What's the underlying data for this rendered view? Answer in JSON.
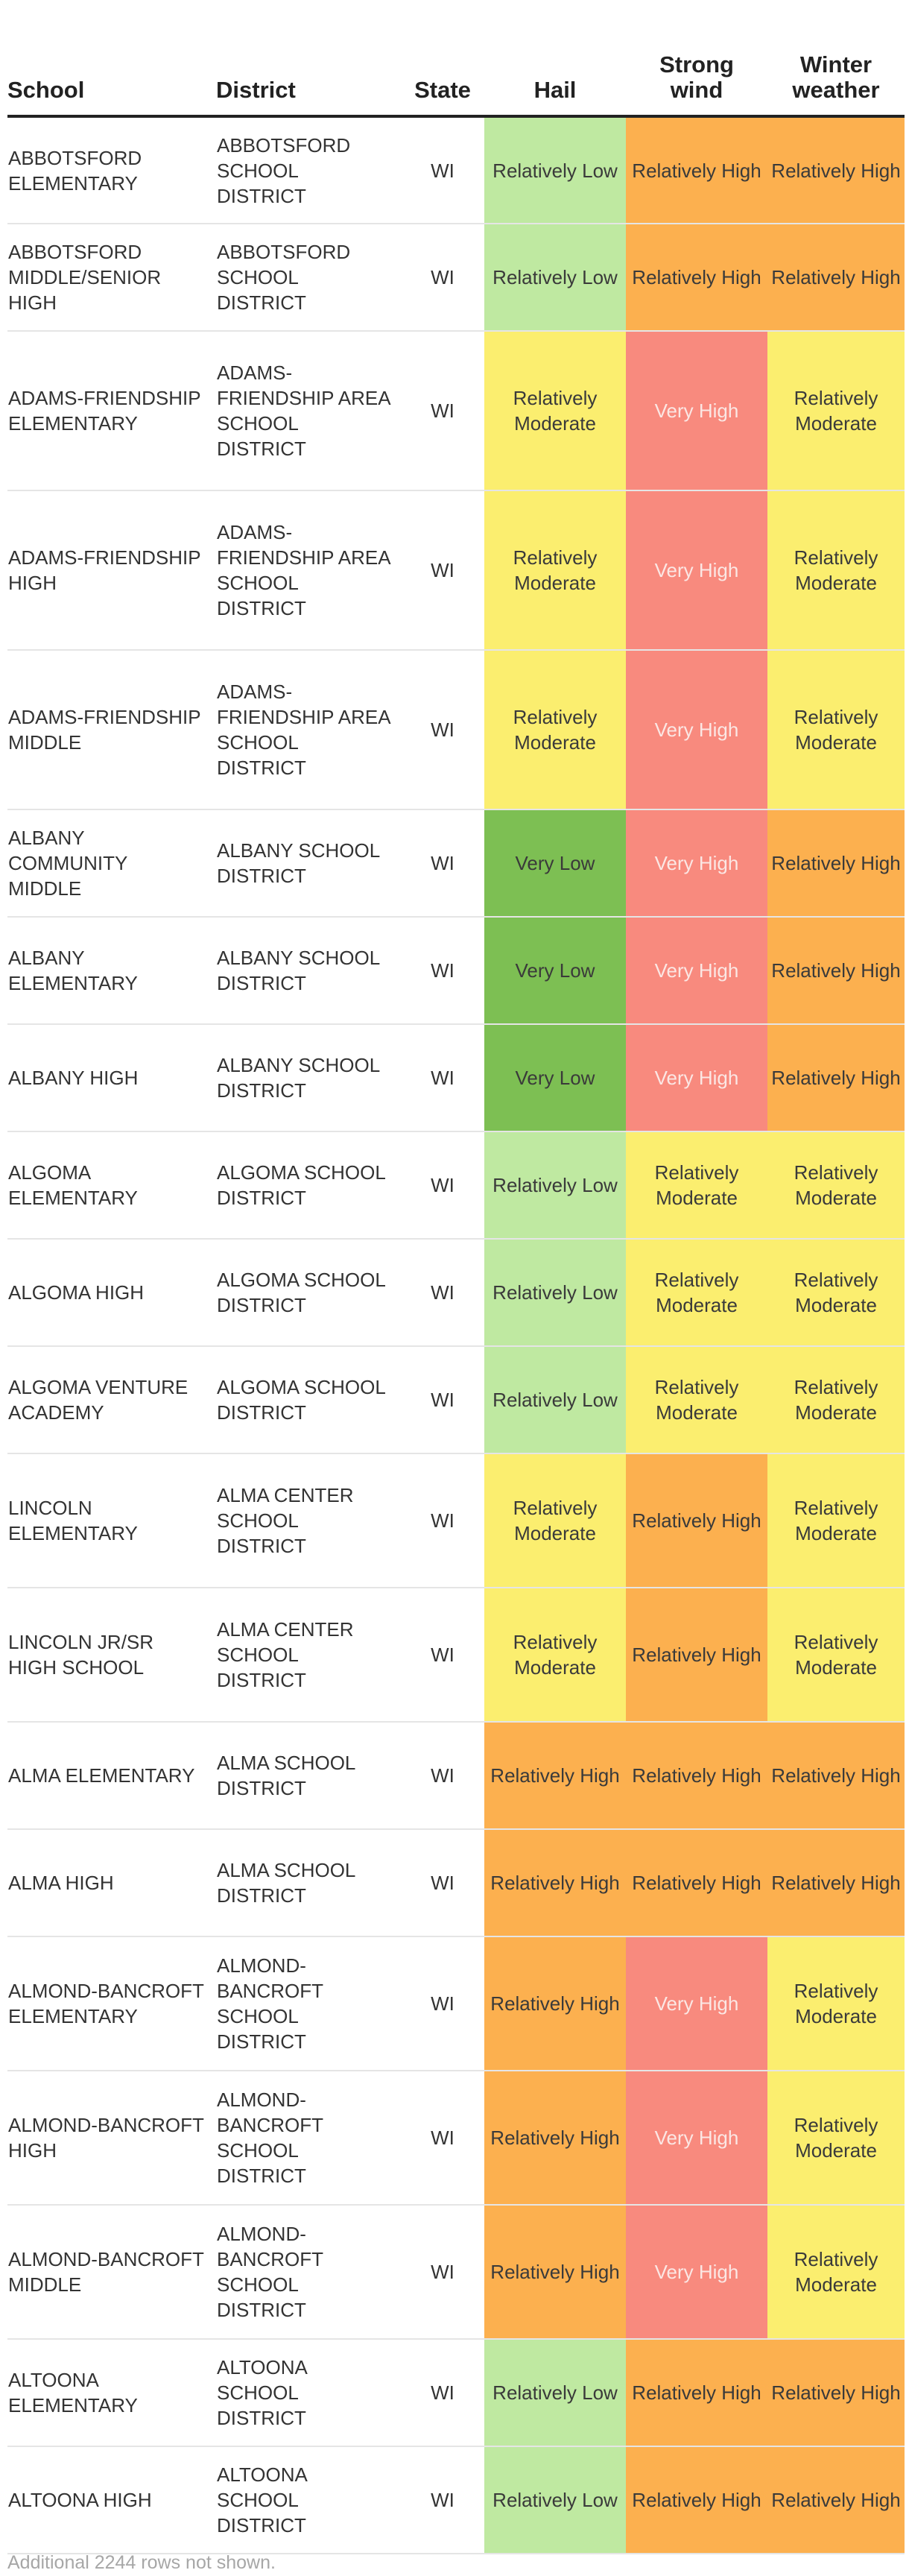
{
  "columns": {
    "school": "School",
    "district": "District",
    "state": "State",
    "hail": "Hail",
    "wind_line1": "Strong",
    "wind_line2": "wind",
    "winter_line1": "Winter",
    "winter_line2": "weather"
  },
  "level_colors": {
    "Very Low": "#7dbf53",
    "Relatively Low": "#bfe9a1",
    "Relatively Moderate": "#fbee6f",
    "Relatively High": "#fcb04f",
    "Very High": "#f88a7e"
  },
  "rows": [
    {
      "school": "ABBOTSFORD ELEMENTARY",
      "district": "ABBOTSFORD SCHOOL DISTRICT",
      "state": "WI",
      "hail": "Relatively Low",
      "wind": "Relatively High",
      "winter": "Relatively High"
    },
    {
      "school": "ABBOTSFORD MIDDLE/SENIOR HIGH",
      "district": "ABBOTSFORD SCHOOL DISTRICT",
      "state": "WI",
      "hail": "Relatively Low",
      "wind": "Relatively High",
      "winter": "Relatively High"
    },
    {
      "school": "ADAMS-FRIENDSHIP ELEMENTARY",
      "district": "ADAMS-FRIENDSHIP AREA SCHOOL DISTRICT",
      "state": "WI",
      "hail": "Relatively Moderate",
      "wind": "Very High",
      "winter": "Relatively Moderate"
    },
    {
      "school": "ADAMS-FRIENDSHIP HIGH",
      "district": "ADAMS-FRIENDSHIP AREA SCHOOL DISTRICT",
      "state": "WI",
      "hail": "Relatively Moderate",
      "wind": "Very High",
      "winter": "Relatively Moderate"
    },
    {
      "school": "ADAMS-FRIENDSHIP MIDDLE",
      "district": "ADAMS-FRIENDSHIP AREA SCHOOL DISTRICT",
      "state": "WI",
      "hail": "Relatively Moderate",
      "wind": "Very High",
      "winter": "Relatively Moderate"
    },
    {
      "school": "ALBANY COMMUNITY MIDDLE",
      "district": "ALBANY SCHOOL DISTRICT",
      "state": "WI",
      "hail": "Very Low",
      "wind": "Very High",
      "winter": "Relatively High"
    },
    {
      "school": "ALBANY ELEMENTARY",
      "district": "ALBANY SCHOOL DISTRICT",
      "state": "WI",
      "hail": "Very Low",
      "wind": "Very High",
      "winter": "Relatively High"
    },
    {
      "school": "ALBANY HIGH",
      "district": "ALBANY SCHOOL DISTRICT",
      "state": "WI",
      "hail": "Very Low",
      "wind": "Very High",
      "winter": "Relatively High"
    },
    {
      "school": "ALGOMA ELEMENTARY",
      "district": "ALGOMA SCHOOL DISTRICT",
      "state": "WI",
      "hail": "Relatively Low",
      "wind": "Relatively Moderate",
      "winter": "Relatively Moderate"
    },
    {
      "school": "ALGOMA HIGH",
      "district": "ALGOMA SCHOOL DISTRICT",
      "state": "WI",
      "hail": "Relatively Low",
      "wind": "Relatively Moderate",
      "winter": "Relatively Moderate"
    },
    {
      "school": "ALGOMA VENTURE ACADEMY",
      "district": "ALGOMA SCHOOL DISTRICT",
      "state": "WI",
      "hail": "Relatively Low",
      "wind": "Relatively Moderate",
      "winter": "Relatively Moderate"
    },
    {
      "school": "LINCOLN ELEMENTARY",
      "district": "ALMA CENTER SCHOOL DISTRICT",
      "state": "WI",
      "hail": "Relatively Moderate",
      "wind": "Relatively High",
      "winter": "Relatively Moderate"
    },
    {
      "school": "LINCOLN JR/SR HIGH SCHOOL",
      "district": "ALMA CENTER SCHOOL DISTRICT",
      "state": "WI",
      "hail": "Relatively Moderate",
      "wind": "Relatively High",
      "winter": "Relatively Moderate"
    },
    {
      "school": "ALMA ELEMENTARY",
      "district": "ALMA SCHOOL DISTRICT",
      "state": "WI",
      "hail": "Relatively High",
      "wind": "Relatively High",
      "winter": "Relatively High"
    },
    {
      "school": "ALMA HIGH",
      "district": "ALMA SCHOOL DISTRICT",
      "state": "WI",
      "hail": "Relatively High",
      "wind": "Relatively High",
      "winter": "Relatively High"
    },
    {
      "school": "ALMOND-BANCROFT ELEMENTARY",
      "district": "ALMOND-BANCROFT SCHOOL DISTRICT",
      "state": "WI",
      "hail": "Relatively High",
      "wind": "Very High",
      "winter": "Relatively Moderate"
    },
    {
      "school": "ALMOND-BANCROFT HIGH",
      "district": "ALMOND-BANCROFT SCHOOL DISTRICT",
      "state": "WI",
      "hail": "Relatively High",
      "wind": "Very High",
      "winter": "Relatively Moderate"
    },
    {
      "school": "ALMOND-BANCROFT MIDDLE",
      "district": "ALMOND-BANCROFT SCHOOL DISTRICT",
      "state": "WI",
      "hail": "Relatively High",
      "wind": "Very High",
      "winter": "Relatively Moderate"
    },
    {
      "school": "ALTOONA ELEMENTARY",
      "district": "ALTOONA SCHOOL DISTRICT",
      "state": "WI",
      "hail": "Relatively Low",
      "wind": "Relatively High",
      "winter": "Relatively High"
    },
    {
      "school": "ALTOONA HIGH",
      "district": "ALTOONA SCHOOL DISTRICT",
      "state": "WI",
      "hail": "Relatively Low",
      "wind": "Relatively High",
      "winter": "Relatively High"
    }
  ],
  "footer": "Additional 2244 rows not shown."
}
